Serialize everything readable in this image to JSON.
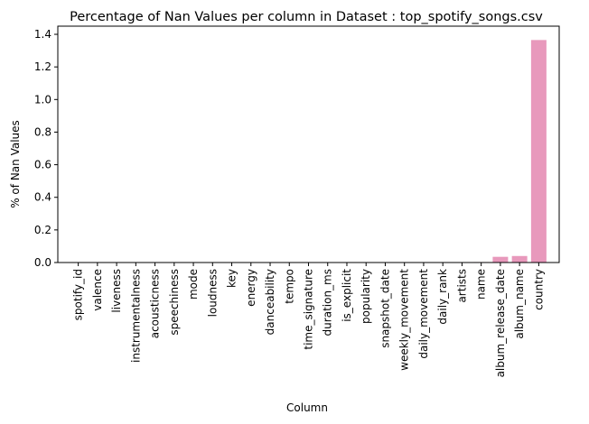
{
  "chart_data": {
    "type": "bar",
    "title": "Percentage of Nan Values per column in Dataset : top_spotify_songs.csv",
    "xlabel": "Column",
    "ylabel": "% of Nan Values",
    "ylim": [
      0,
      1.45
    ],
    "yticks": [
      "0.0",
      "0.2",
      "0.4",
      "0.6",
      "0.8",
      "1.0",
      "1.2",
      "1.4"
    ],
    "grid": false,
    "categories": [
      "spotify_id",
      "valence",
      "liveness",
      "instrumentalness",
      "acousticness",
      "speechiness",
      "mode",
      "loudness",
      "key",
      "energy",
      "danceability",
      "tempo",
      "time_signature",
      "duration_ms",
      "is_explicit",
      "popularity",
      "snapshot_date",
      "weekly_movement",
      "daily_movement",
      "daily_rank",
      "artists",
      "name",
      "album_release_date",
      "album_name",
      "country"
    ],
    "values": [
      0,
      0,
      0,
      0,
      0,
      0,
      0,
      0,
      0,
      0,
      0,
      0,
      0,
      0,
      0,
      0,
      0,
      0,
      0,
      0,
      0,
      0.003,
      0.035,
      0.04,
      1.365
    ],
    "bar_color": "#e899bc"
  }
}
